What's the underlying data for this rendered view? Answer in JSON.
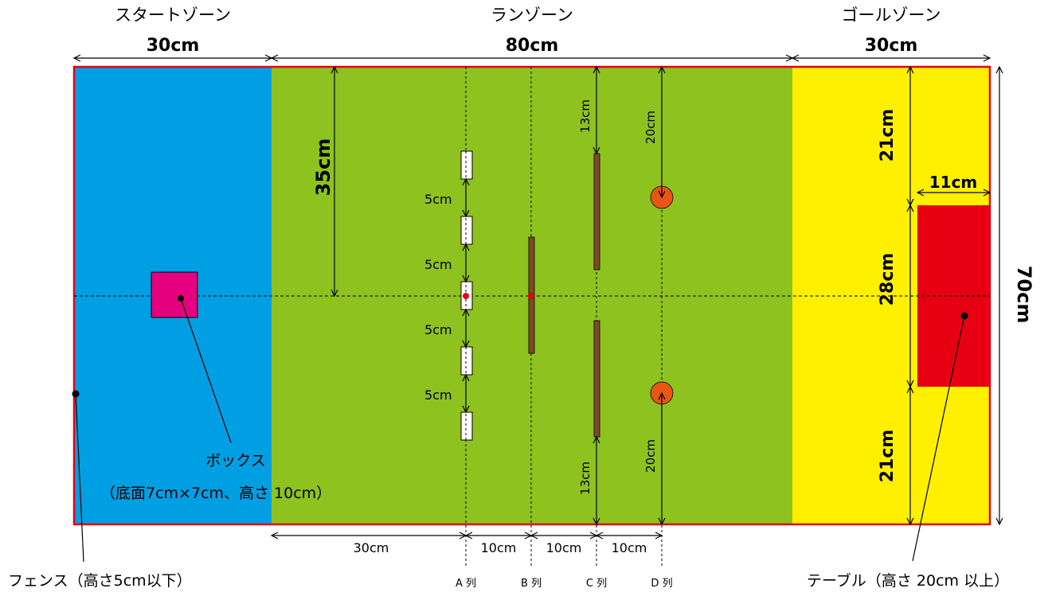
{
  "zones": {
    "start": {
      "title": "スタートゾーン",
      "width_label": "30cm",
      "color": "#009FE3"
    },
    "run": {
      "title": "ランゾーン",
      "width_label": "80cm",
      "color": "#8DC21F"
    },
    "goal": {
      "title": "ゴールゾーン",
      "width_label": "30cm",
      "color": "#FFF000"
    }
  },
  "field": {
    "border_color": "#E60012",
    "height_label": "70cm"
  },
  "run_zone": {
    "top_to_center": "35cm",
    "a_gaps": [
      "5cm",
      "5cm",
      "5cm",
      "5cm"
    ],
    "c_top": "13cm",
    "c_bottom": "13cm",
    "d_top": "20cm",
    "d_bottom": "20cm",
    "bottom_offsets": [
      "30cm",
      "10cm",
      "10cm",
      "10cm"
    ],
    "columns": [
      "A 列",
      "B 列",
      "C 列",
      "D 列"
    ],
    "bar_color": "#7B4A2A",
    "ball_color": "#E95513"
  },
  "goal_zone": {
    "top": "21cm",
    "middle": "28cm",
    "bottom": "21cm",
    "table_width": "11cm",
    "table_color": "#E60012"
  },
  "box": {
    "color": "#E4007F"
  },
  "callouts": {
    "box_name": "ボックス",
    "box_spec": "（底面7cm×7cm、高さ 10cm）",
    "fence": "フェンス（高さ5cm以下）",
    "table": "テーブル（高さ 20cm 以上）"
  }
}
